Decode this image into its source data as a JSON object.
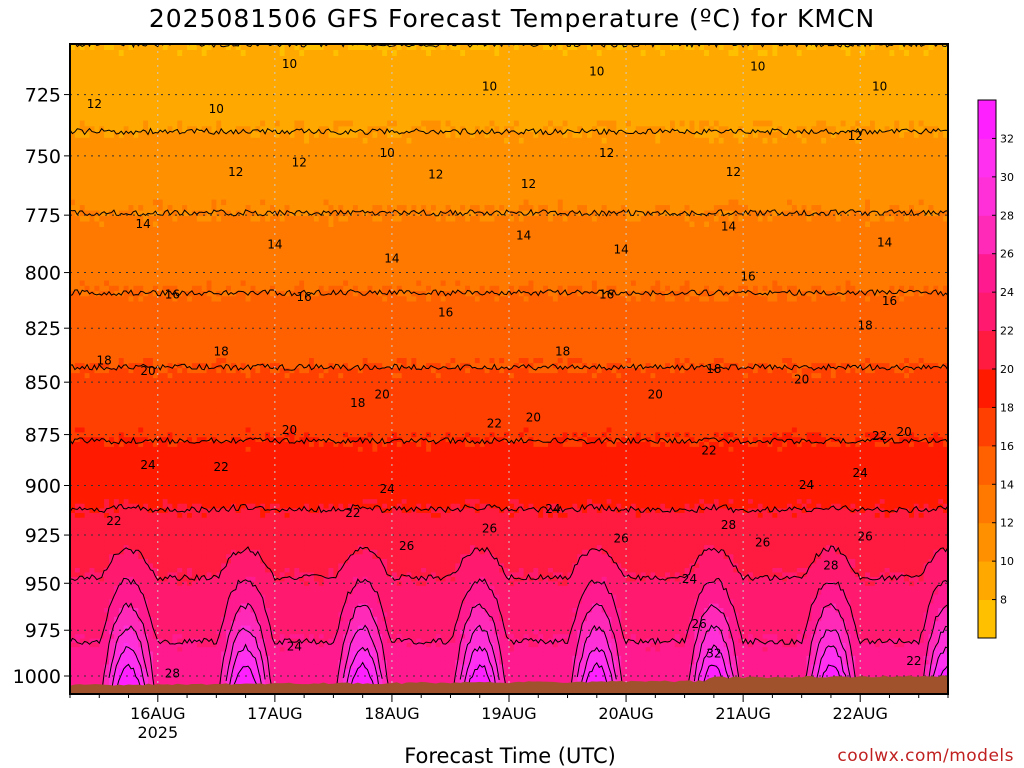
{
  "title": "2025081506 GFS Forecast Temperature (ºC) for KMCN",
  "credit": "coolwx.com/models",
  "chart_data": {
    "type": "heatmap",
    "title": "2025081506 GFS Forecast Temperature (ºC) for KMCN",
    "xlabel": "Forecast Time (UTC)",
    "ylabel": "",
    "x_ticks": [
      {
        "label": "16AUG",
        "sub": "2025",
        "hours": 18
      },
      {
        "label": "17AUG",
        "sub": "",
        "hours": 42
      },
      {
        "label": "18AUG",
        "sub": "",
        "hours": 66
      },
      {
        "label": "19AUG",
        "sub": "",
        "hours": 90
      },
      {
        "label": "20AUG",
        "sub": "",
        "hours": 114
      },
      {
        "label": "21AUG",
        "sub": "",
        "hours": 138
      },
      {
        "label": "22AUG",
        "sub": "",
        "hours": 162
      }
    ],
    "xlim_hours": [
      0,
      180
    ],
    "y_ticks": [
      725,
      750,
      775,
      800,
      825,
      850,
      875,
      900,
      925,
      950,
      975,
      1000
    ],
    "ylim_hpa": [
      705,
      1010
    ],
    "y_scale": "log",
    "grid": true,
    "colorbar": {
      "levels": [
        8,
        10,
        12,
        14,
        16,
        18,
        20,
        22,
        24,
        26,
        28,
        30,
        32
      ],
      "colors": [
        "#ffc000",
        "#ffa800",
        "#ff9000",
        "#ff7800",
        "#ff6000",
        "#ff4000",
        "#ff1a00",
        "#ff1a40",
        "#ff1a70",
        "#ff1a90",
        "#ff2ab8",
        "#ff30d8",
        "#ff30f0",
        "#ff20ff"
      ]
    },
    "contour_labels": [
      {
        "label": "10",
        "hours": 45,
        "hpa": 713
      },
      {
        "label": "10",
        "hours": 30,
        "hpa": 731
      },
      {
        "label": "10",
        "hours": 86,
        "hpa": 722
      },
      {
        "label": "10",
        "hours": 108,
        "hpa": 716
      },
      {
        "label": "10",
        "hours": 141,
        "hpa": 714
      },
      {
        "label": "10",
        "hours": 166,
        "hpa": 722
      },
      {
        "label": "10",
        "hours": 65,
        "hpa": 749
      },
      {
        "label": "12",
        "hours": 5,
        "hpa": 729
      },
      {
        "label": "12",
        "hours": 34,
        "hpa": 757
      },
      {
        "label": "12",
        "hours": 47,
        "hpa": 753
      },
      {
        "label": "12",
        "hours": 75,
        "hpa": 758
      },
      {
        "label": "12",
        "hours": 94,
        "hpa": 762
      },
      {
        "label": "12",
        "hours": 110,
        "hpa": 749
      },
      {
        "label": "12",
        "hours": 136,
        "hpa": 757
      },
      {
        "label": "12",
        "hours": 161,
        "hpa": 742
      },
      {
        "label": "14",
        "hours": 15,
        "hpa": 779
      },
      {
        "label": "14",
        "hours": 42,
        "hpa": 788
      },
      {
        "label": "14",
        "hours": 66,
        "hpa": 794
      },
      {
        "label": "14",
        "hours": 93,
        "hpa": 784
      },
      {
        "label": "14",
        "hours": 113,
        "hpa": 790
      },
      {
        "label": "14",
        "hours": 135,
        "hpa": 780
      },
      {
        "label": "14",
        "hours": 167,
        "hpa": 787
      },
      {
        "label": "16",
        "hours": 21,
        "hpa": 810
      },
      {
        "label": "16",
        "hours": 48,
        "hpa": 811
      },
      {
        "label": "16",
        "hours": 77,
        "hpa": 818
      },
      {
        "label": "16",
        "hours": 110,
        "hpa": 810
      },
      {
        "label": "16",
        "hours": 139,
        "hpa": 802
      },
      {
        "label": "16",
        "hours": 168,
        "hpa": 813
      },
      {
        "label": "18",
        "hours": 7,
        "hpa": 840
      },
      {
        "label": "18",
        "hours": 31,
        "hpa": 836
      },
      {
        "label": "18",
        "hours": 101,
        "hpa": 836
      },
      {
        "label": "18",
        "hours": 132,
        "hpa": 844
      },
      {
        "label": "18",
        "hours": 163,
        "hpa": 824
      },
      {
        "label": "18",
        "hours": 59,
        "hpa": 860
      },
      {
        "label": "20",
        "hours": 16,
        "hpa": 845
      },
      {
        "label": "20",
        "hours": 45,
        "hpa": 873
      },
      {
        "label": "20",
        "hours": 64,
        "hpa": 856
      },
      {
        "label": "20",
        "hours": 95,
        "hpa": 867
      },
      {
        "label": "20",
        "hours": 120,
        "hpa": 856
      },
      {
        "label": "20",
        "hours": 150,
        "hpa": 849
      },
      {
        "label": "20",
        "hours": 171,
        "hpa": 874
      },
      {
        "label": "22",
        "hours": 9,
        "hpa": 918
      },
      {
        "label": "22",
        "hours": 31,
        "hpa": 891
      },
      {
        "label": "22",
        "hours": 87,
        "hpa": 870
      },
      {
        "label": "22",
        "hours": 131,
        "hpa": 883
      },
      {
        "label": "22",
        "hours": 166,
        "hpa": 876
      },
      {
        "label": "22",
        "hours": 58,
        "hpa": 914
      },
      {
        "label": "22",
        "hours": 173,
        "hpa": 992
      },
      {
        "label": "24",
        "hours": 16,
        "hpa": 890
      },
      {
        "label": "24",
        "hours": 65,
        "hpa": 902
      },
      {
        "label": "24",
        "hours": 99,
        "hpa": 912
      },
      {
        "label": "24",
        "hours": 151,
        "hpa": 900
      },
      {
        "label": "24",
        "hours": 162,
        "hpa": 894
      },
      {
        "label": "24",
        "hours": 127,
        "hpa": 948
      },
      {
        "label": "24",
        "hours": 46,
        "hpa": 984
      },
      {
        "label": "26",
        "hours": 69,
        "hpa": 931
      },
      {
        "label": "26",
        "hours": 86,
        "hpa": 922
      },
      {
        "label": "26",
        "hours": 113,
        "hpa": 927
      },
      {
        "label": "26",
        "hours": 142,
        "hpa": 929
      },
      {
        "label": "26",
        "hours": 163,
        "hpa": 926
      },
      {
        "label": "26",
        "hours": 129,
        "hpa": 972
      },
      {
        "label": "28",
        "hours": 135,
        "hpa": 920
      },
      {
        "label": "28",
        "hours": 156,
        "hpa": 941
      },
      {
        "label": "28",
        "hours": 21,
        "hpa": 999
      },
      {
        "label": "32",
        "hours": 132,
        "hpa": 988
      }
    ],
    "terrain_color": "#a0522d"
  }
}
